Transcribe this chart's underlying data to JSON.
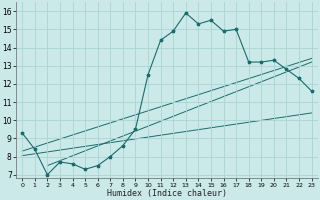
{
  "title": "",
  "xlabel": "Humidex (Indice chaleur)",
  "xlim": [
    -0.5,
    23.5
  ],
  "ylim": [
    6.8,
    16.5
  ],
  "xticks": [
    0,
    1,
    2,
    3,
    4,
    5,
    6,
    7,
    8,
    9,
    10,
    11,
    12,
    13,
    14,
    15,
    16,
    17,
    18,
    19,
    20,
    21,
    22,
    23
  ],
  "yticks": [
    7,
    8,
    9,
    10,
    11,
    12,
    13,
    14,
    15,
    16
  ],
  "bg_color": "#cce9e9",
  "grid_color": "#aad4d4",
  "line_color": "#1a6b6b",
  "main_line": [
    [
      0,
      9.3
    ],
    [
      1,
      8.4
    ],
    [
      2,
      7.0
    ],
    [
      3,
      7.7
    ],
    [
      4,
      7.6
    ],
    [
      5,
      7.3
    ],
    [
      6,
      7.5
    ],
    [
      7,
      8.0
    ],
    [
      8,
      8.6
    ],
    [
      9,
      9.5
    ],
    [
      10,
      12.5
    ],
    [
      11,
      14.4
    ],
    [
      12,
      14.9
    ],
    [
      13,
      15.9
    ],
    [
      14,
      15.3
    ],
    [
      15,
      15.5
    ],
    [
      16,
      14.9
    ],
    [
      17,
      15.0
    ],
    [
      18,
      13.2
    ],
    [
      19,
      13.2
    ],
    [
      20,
      13.3
    ],
    [
      21,
      12.8
    ],
    [
      22,
      12.3
    ],
    [
      23,
      11.6
    ]
  ],
  "trend_line1": [
    [
      0,
      8.05
    ],
    [
      23,
      10.4
    ]
  ],
  "trend_line2": [
    [
      0,
      8.3
    ],
    [
      23,
      13.4
    ]
  ],
  "trend_line3": [
    [
      2,
      7.5
    ],
    [
      23,
      13.2
    ]
  ]
}
